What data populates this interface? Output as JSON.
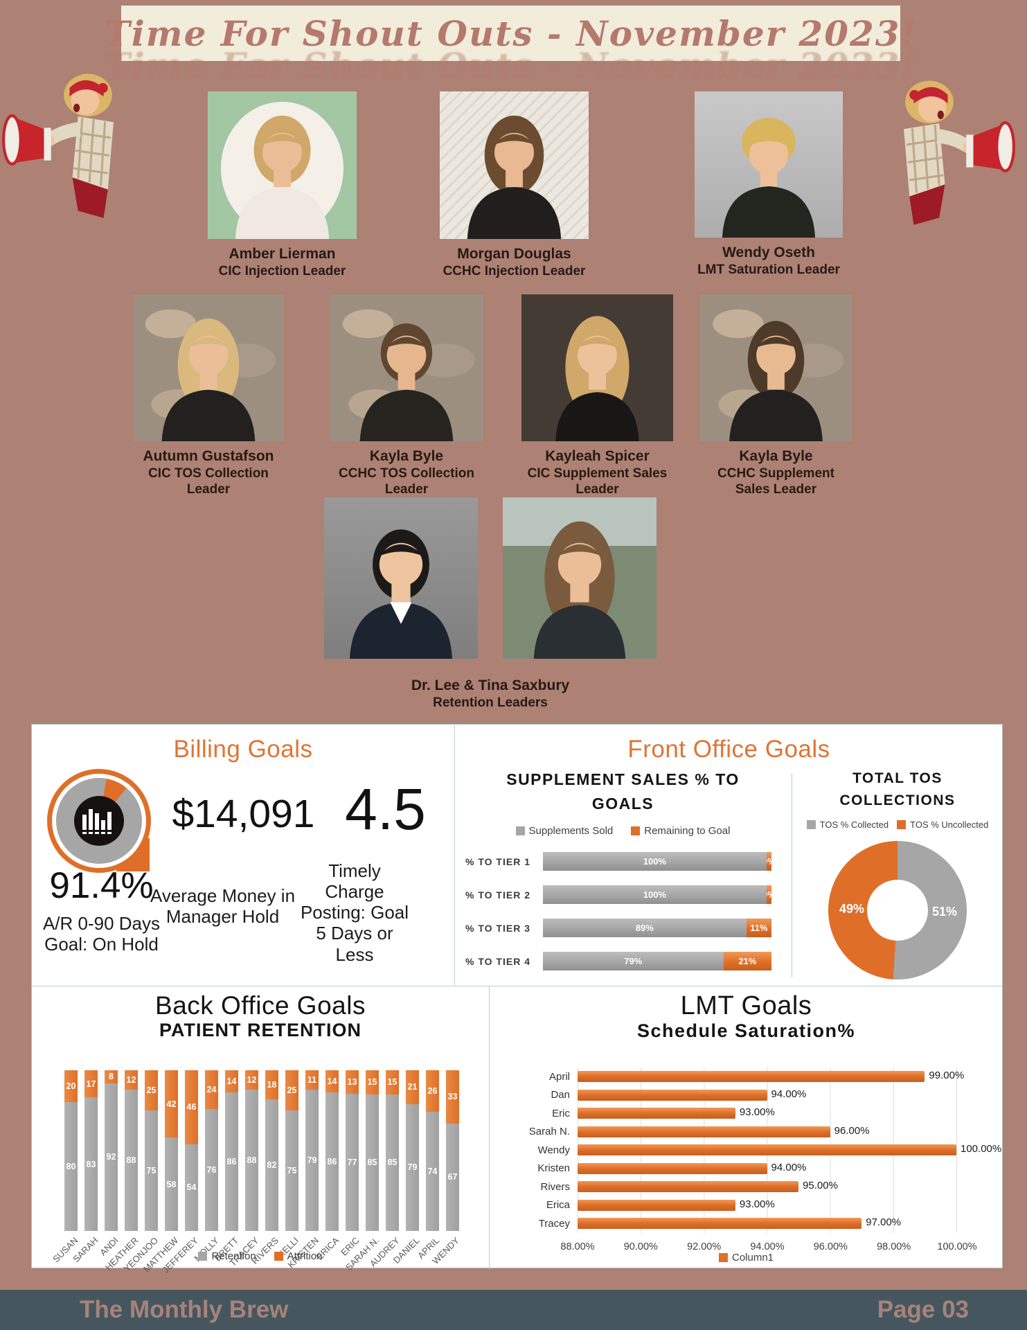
{
  "banner": {
    "title": "Time For Shout Outs - November 2023!"
  },
  "people": [
    {
      "name": "Amber Lierman",
      "role": "CIC Injection Leader"
    },
    {
      "name": "Morgan Douglas",
      "role": "CCHC Injection Leader"
    },
    {
      "name": "Wendy Oseth",
      "role": "LMT Saturation Leader"
    },
    {
      "name": "Autumn Gustafson",
      "role": "CIC TOS Collection Leader"
    },
    {
      "name": "Kayla Byle",
      "role": "CCHC TOS Collection Leader"
    },
    {
      "name": "Kayleah Spicer",
      "role": "CIC Supplement Sales Leader"
    },
    {
      "name": "Kayla Byle",
      "role": "CCHC Supplement Sales Leader"
    },
    {
      "name": "Dr. Lee & Tina Saxbury",
      "role": "Retention Leaders"
    }
  ],
  "billing": {
    "title": "Billing Goals",
    "stats": [
      {
        "value": "91.4%",
        "caption": "A/R 0-90 Days Goal: On Hold"
      },
      {
        "value": "$14,091",
        "caption": "Average Money in Manager Hold"
      },
      {
        "value": "4.5",
        "caption": "Timely Charge Posting: Goal 5 Days or Less"
      }
    ]
  },
  "front_office": {
    "title": "Front Office Goals"
  },
  "back_office": {
    "title": "Back Office Goals"
  },
  "lmt": {
    "title": "LMT Goals"
  },
  "footer": {
    "brand": "The Monthly Brew",
    "page": "Page 03"
  },
  "colors": {
    "background": "#ad8174",
    "banner_bg": "#f2edda",
    "banner_text": "#b5796d",
    "accent_orange": "#df7434",
    "chart_gray": "#a6a6a6",
    "chart_orange": "#df6f28",
    "footer_bg": "#46565f",
    "footer_text": "#a7837a"
  },
  "chart_data": [
    {
      "id": "supplement_sales",
      "type": "bar",
      "orientation": "horizontal",
      "stacked": true,
      "title": "SUPPLEMENT SALES % TO GOALS",
      "categories": [
        "% TO TIER 1",
        "% TO TIER 2",
        "% TO TIER 3",
        "% TO TIER 4"
      ],
      "series": [
        {
          "name": "Supplements Sold",
          "color": "#a6a6a6",
          "values": [
            100,
            100,
            89,
            79
          ]
        },
        {
          "name": "Remaining to Goal",
          "color": "#df6f28",
          "values": [
            0,
            0,
            11,
            21
          ]
        }
      ],
      "value_suffix": "%",
      "legend_position": "top"
    },
    {
      "id": "tos_collections",
      "type": "pie",
      "donut": true,
      "title": "TOTAL TOS COLLECTIONS",
      "labels": [
        "TOS % Collected",
        "TOS % Uncollected"
      ],
      "values": [
        51,
        49
      ],
      "colors": [
        "#a6a6a6",
        "#df6f28"
      ],
      "legend_position": "top"
    },
    {
      "id": "patient_retention",
      "type": "bar",
      "orientation": "vertical",
      "stacked": true,
      "title": "PATIENT RETENTION",
      "categories": [
        "SUSAN",
        "SARAH",
        "ANDI",
        "HEATHER",
        "YEONJOO",
        "MATTHEW",
        "JEFFEREY",
        "MOLLY",
        "BRETT",
        "TRACEY",
        "RIVERS",
        "KELLI",
        "KRISTEN",
        "ERICA",
        "ERIC",
        "SARAH N.",
        "AUDREY",
        "DANIEL",
        "APRIL",
        "WENDY"
      ],
      "series": [
        {
          "name": "Retention",
          "color": "#a6a6a6",
          "values": [
            80,
            83,
            92,
            88,
            75,
            58,
            54,
            76,
            86,
            88,
            82,
            75,
            79,
            86,
            77,
            85,
            85,
            79,
            74,
            67
          ]
        },
        {
          "name": "Attrition",
          "color": "#df6f28",
          "values": [
            20,
            17,
            8,
            12,
            25,
            42,
            46,
            24,
            14,
            12,
            18,
            25,
            11,
            14,
            13,
            15,
            15,
            21,
            26,
            33
          ]
        }
      ],
      "legend_position": "bottom"
    },
    {
      "id": "schedule_saturation",
      "type": "bar",
      "orientation": "horizontal",
      "title": "Schedule Saturation%",
      "categories": [
        "April",
        "Dan",
        "Eric",
        "Sarah N.",
        "Wendy",
        "Kristen",
        "Rivers",
        "Erica",
        "Tracey"
      ],
      "values": [
        99,
        94,
        93,
        96,
        100,
        94,
        95,
        93,
        97
      ],
      "value_labels": [
        "99.00%",
        "94.00%",
        "93.00%",
        "96.00%",
        "100.00%",
        "94.00%",
        "95.00%",
        "93.00%",
        "97.00%"
      ],
      "xlim": [
        88,
        100
      ],
      "x_ticks": [
        "88.00%",
        "90.00%",
        "92.00%",
        "94.00%",
        "96.00%",
        "98.00%",
        "100.00%"
      ],
      "series_name": "Column1",
      "color": "#df6f28",
      "legend_position": "bottom"
    }
  ]
}
